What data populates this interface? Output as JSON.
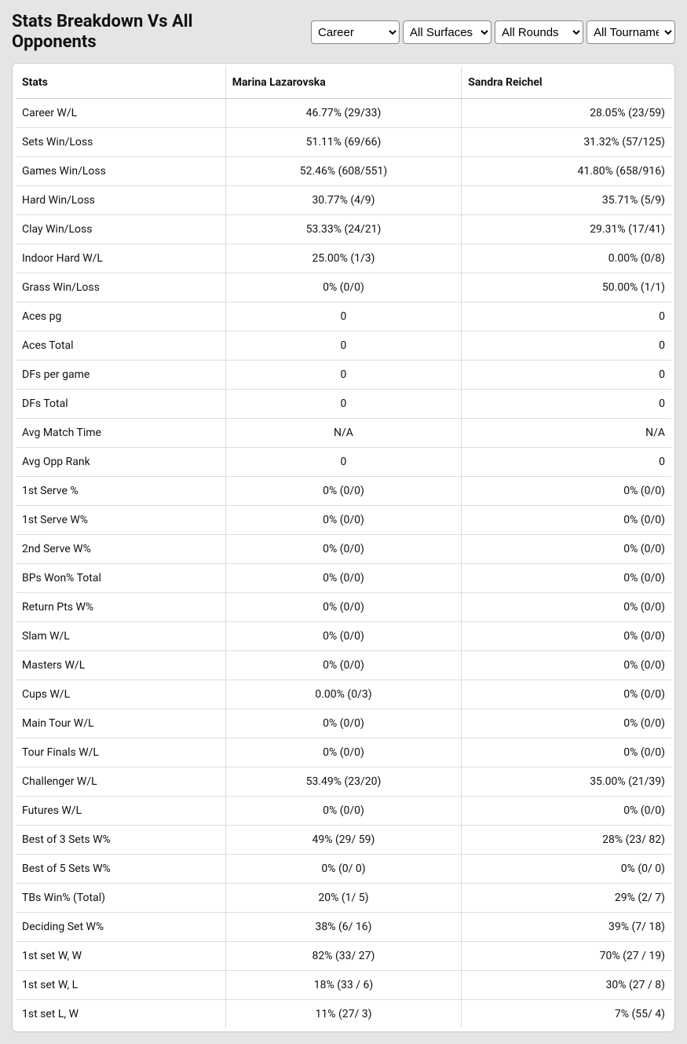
{
  "header": {
    "title": "Stats Breakdown Vs All Opponents"
  },
  "filters": {
    "timeframe": {
      "selected": "Career",
      "options": [
        "Career"
      ]
    },
    "surface": {
      "selected": "All Surfaces",
      "options": [
        "All Surfaces"
      ]
    },
    "rounds": {
      "selected": "All Rounds",
      "options": [
        "All Rounds"
      ]
    },
    "tournaments": {
      "selected": "All Tournaments",
      "options": [
        "All Tournaments"
      ]
    }
  },
  "table": {
    "columns": [
      "Stats",
      "Marina Lazarovska",
      "Sandra Reichel"
    ],
    "rows": [
      {
        "label": "Career W/L",
        "p1": "46.77% (29/33)",
        "p2": "28.05% (23/59)"
      },
      {
        "label": "Sets Win/Loss",
        "p1": "51.11% (69/66)",
        "p2": "31.32% (57/125)"
      },
      {
        "label": "Games Win/Loss",
        "p1": "52.46% (608/551)",
        "p2": "41.80% (658/916)"
      },
      {
        "label": "Hard Win/Loss",
        "p1": "30.77% (4/9)",
        "p2": "35.71% (5/9)"
      },
      {
        "label": "Clay Win/Loss",
        "p1": "53.33% (24/21)",
        "p2": "29.31% (17/41)"
      },
      {
        "label": "Indoor Hard W/L",
        "p1": "25.00% (1/3)",
        "p2": "0.00% (0/8)"
      },
      {
        "label": "Grass Win/Loss",
        "p1": "0% (0/0)",
        "p2": "50.00% (1/1)"
      },
      {
        "label": "Aces pg",
        "p1": "0",
        "p2": "0"
      },
      {
        "label": "Aces Total",
        "p1": "0",
        "p2": "0"
      },
      {
        "label": "DFs per game",
        "p1": "0",
        "p2": "0"
      },
      {
        "label": "DFs Total",
        "p1": "0",
        "p2": "0"
      },
      {
        "label": "Avg Match Time",
        "p1": "N/A",
        "p2": "N/A"
      },
      {
        "label": "Avg Opp Rank",
        "p1": "0",
        "p2": "0"
      },
      {
        "label": "1st Serve %",
        "p1": "0% (0/0)",
        "p2": "0% (0/0)"
      },
      {
        "label": "1st Serve W%",
        "p1": "0% (0/0)",
        "p2": "0% (0/0)"
      },
      {
        "label": "2nd Serve W%",
        "p1": "0% (0/0)",
        "p2": "0% (0/0)"
      },
      {
        "label": "BPs Won% Total",
        "p1": "0% (0/0)",
        "p2": "0% (0/0)"
      },
      {
        "label": "Return Pts W%",
        "p1": "0% (0/0)",
        "p2": "0% (0/0)"
      },
      {
        "label": "Slam W/L",
        "p1": "0% (0/0)",
        "p2": "0% (0/0)"
      },
      {
        "label": "Masters W/L",
        "p1": "0% (0/0)",
        "p2": "0% (0/0)"
      },
      {
        "label": "Cups W/L",
        "p1": "0.00% (0/3)",
        "p2": "0% (0/0)"
      },
      {
        "label": "Main Tour W/L",
        "p1": "0% (0/0)",
        "p2": "0% (0/0)"
      },
      {
        "label": "Tour Finals W/L",
        "p1": "0% (0/0)",
        "p2": "0% (0/0)"
      },
      {
        "label": "Challenger W/L",
        "p1": "53.49% (23/20)",
        "p2": "35.00% (21/39)"
      },
      {
        "label": "Futures W/L",
        "p1": "0% (0/0)",
        "p2": "0% (0/0)"
      },
      {
        "label": "Best of 3 Sets W%",
        "p1": "49% (29/ 59)",
        "p2": "28% (23/ 82)"
      },
      {
        "label": "Best of 5 Sets W%",
        "p1": "0% (0/ 0)",
        "p2": "0% (0/ 0)"
      },
      {
        "label": "TBs Win% (Total)",
        "p1": "20% (1/ 5)",
        "p2": "29% (2/ 7)"
      },
      {
        "label": "Deciding Set W%",
        "p1": "38% (6/ 16)",
        "p2": "39% (7/ 18)"
      },
      {
        "label": "1st set W, W",
        "p1": "82% (33/ 27)",
        "p2": "70% (27 / 19)"
      },
      {
        "label": "1st set W, L",
        "p1": "18% (33 / 6)",
        "p2": "30% (27 / 8)"
      },
      {
        "label": "1st set L, W",
        "p1": "11% (27/ 3)",
        "p2": "7% (55/ 4)"
      }
    ]
  }
}
